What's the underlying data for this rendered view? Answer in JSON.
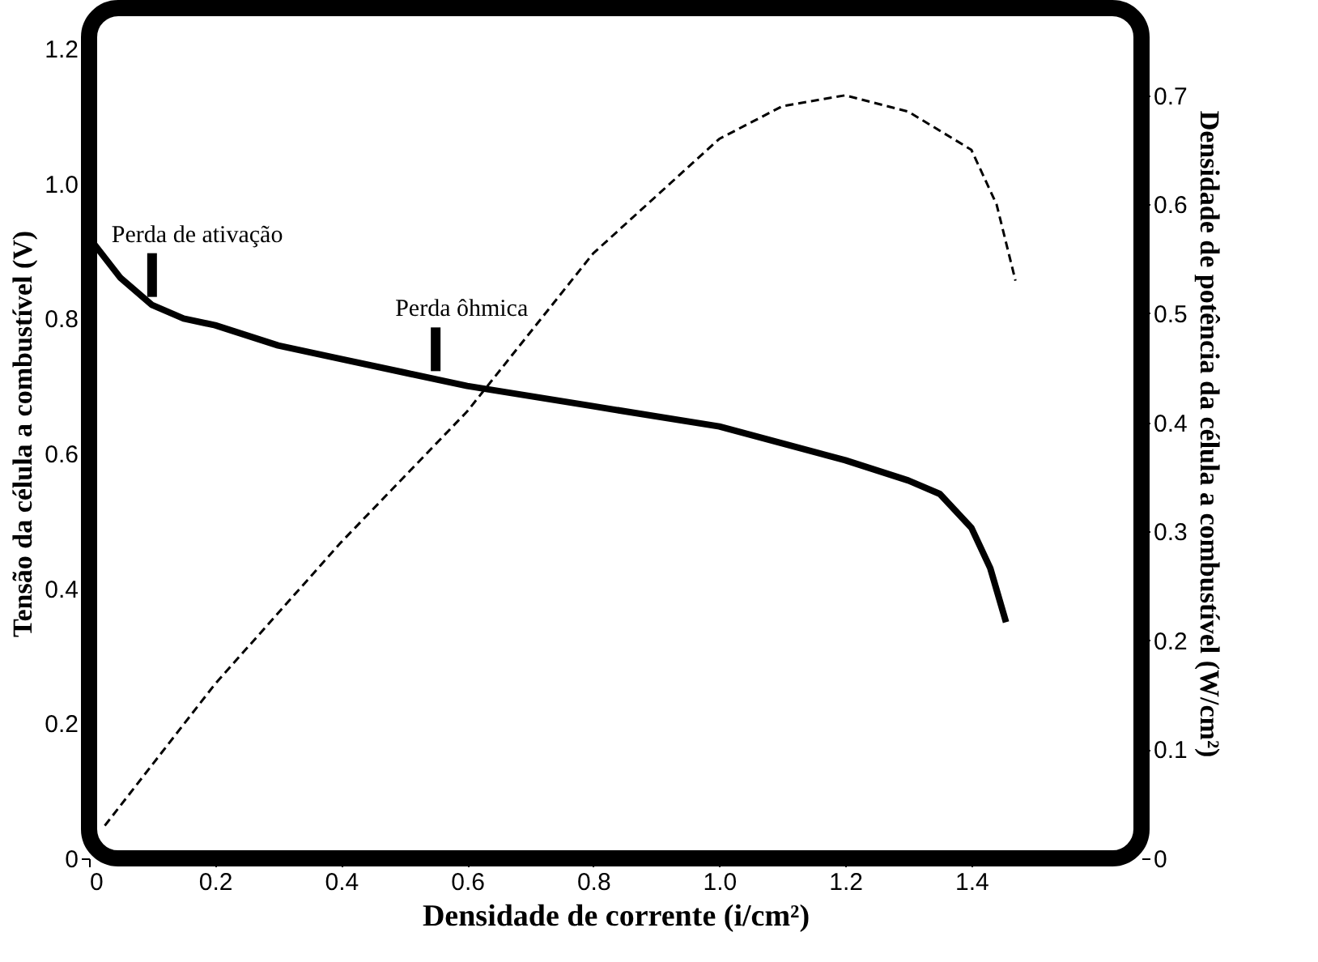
{
  "chart_data": {
    "type": "line",
    "xlabel": "Densidade de corrente (i/cm²)",
    "ylabel": "Tensão da célula a combustível (V)",
    "y2label": "Densidade de potência da célula a combustível (W/cm²)",
    "xlim": [
      0,
      1.67
    ],
    "xticks": [
      0,
      0.2,
      0.4,
      0.6,
      0.8,
      {
        "value": 1.0,
        "label": "1.0"
      },
      1.2,
      1.4
    ],
    "ylim": [
      0,
      1.26
    ],
    "yticks": [
      0,
      0.2,
      0.4,
      0.6,
      0.8,
      {
        "value": 1.0,
        "label": "1.0"
      },
      1.2
    ],
    "y2lim": [
      0,
      0.78
    ],
    "y2ticks": [
      0,
      0.1,
      0.2,
      0.3,
      0.4,
      0.5,
      0.6,
      0.7
    ],
    "grid": false,
    "legend": false,
    "marker": "none",
    "series": [
      {
        "color": "#000000",
        "line_style": "solid",
        "x": [
          0,
          0.05,
          0.1,
          0.15,
          0.2,
          0.3,
          0.4,
          0.5,
          0.6,
          0.8,
          1.0,
          1.2,
          1.3,
          1.35,
          1.4,
          1.43,
          1.455
        ],
        "values": [
          0.92,
          0.86,
          0.82,
          0.8,
          0.79,
          0.76,
          0.74,
          0.72,
          0.7,
          0.67,
          0.64,
          0.59,
          0.56,
          0.54,
          0.49,
          0.43,
          0.35
        ]
      },
      {
        "color": "#000000",
        "line_style": "dashed",
        "axis": "y2",
        "x": [
          0.025,
          0.2,
          0.4,
          0.6,
          0.8,
          1.0,
          1.1,
          1.2,
          1.3,
          1.4,
          1.44,
          1.47
        ],
        "values": [
          0.03,
          0.16,
          0.29,
          0.41,
          0.555,
          0.66,
          0.69,
          0.7,
          0.685,
          0.65,
          0.6,
          0.53
        ]
      }
    ],
    "annotations": [
      {
        "text": "Perda de ativação",
        "x": 0.1,
        "y": 0.82
      },
      {
        "text": "Perda ôhmica",
        "x": 0.55,
        "y": 0.71
      }
    ]
  }
}
